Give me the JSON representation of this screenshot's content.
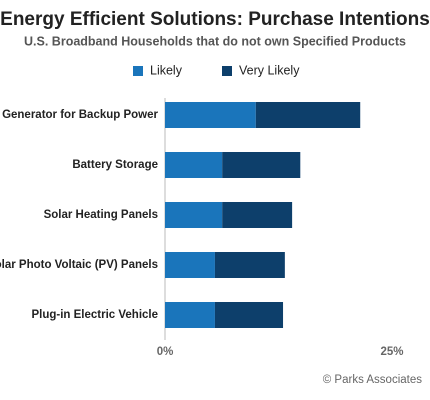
{
  "chart_data": {
    "type": "bar",
    "orientation": "horizontal",
    "stacked": true,
    "title": "Energy Efficient Solutions: Purchase Intentions",
    "subtitle": "U.S. Broadband Households that do not own Specified Products",
    "source": "© Parks Associates",
    "categories": [
      "Generator for Backup Power",
      "Battery Storage",
      "Solar Heating Panels",
      "Solar Photo Voltaic (PV) Panels",
      "Plug-in Electric Vehicle"
    ],
    "series": [
      {
        "name": "Likely",
        "color": "#1a75bb",
        "values": [
          10.0,
          6.3,
          6.3,
          5.5,
          5.5
        ]
      },
      {
        "name": "Very Likely",
        "color": "#0d3f6b",
        "values": [
          11.5,
          8.6,
          7.7,
          7.7,
          7.5
        ]
      }
    ],
    "xlim": [
      0,
      25
    ],
    "xticks": [
      {
        "value": 0,
        "label": "0%"
      },
      {
        "value": 25,
        "label": "25%"
      }
    ]
  }
}
